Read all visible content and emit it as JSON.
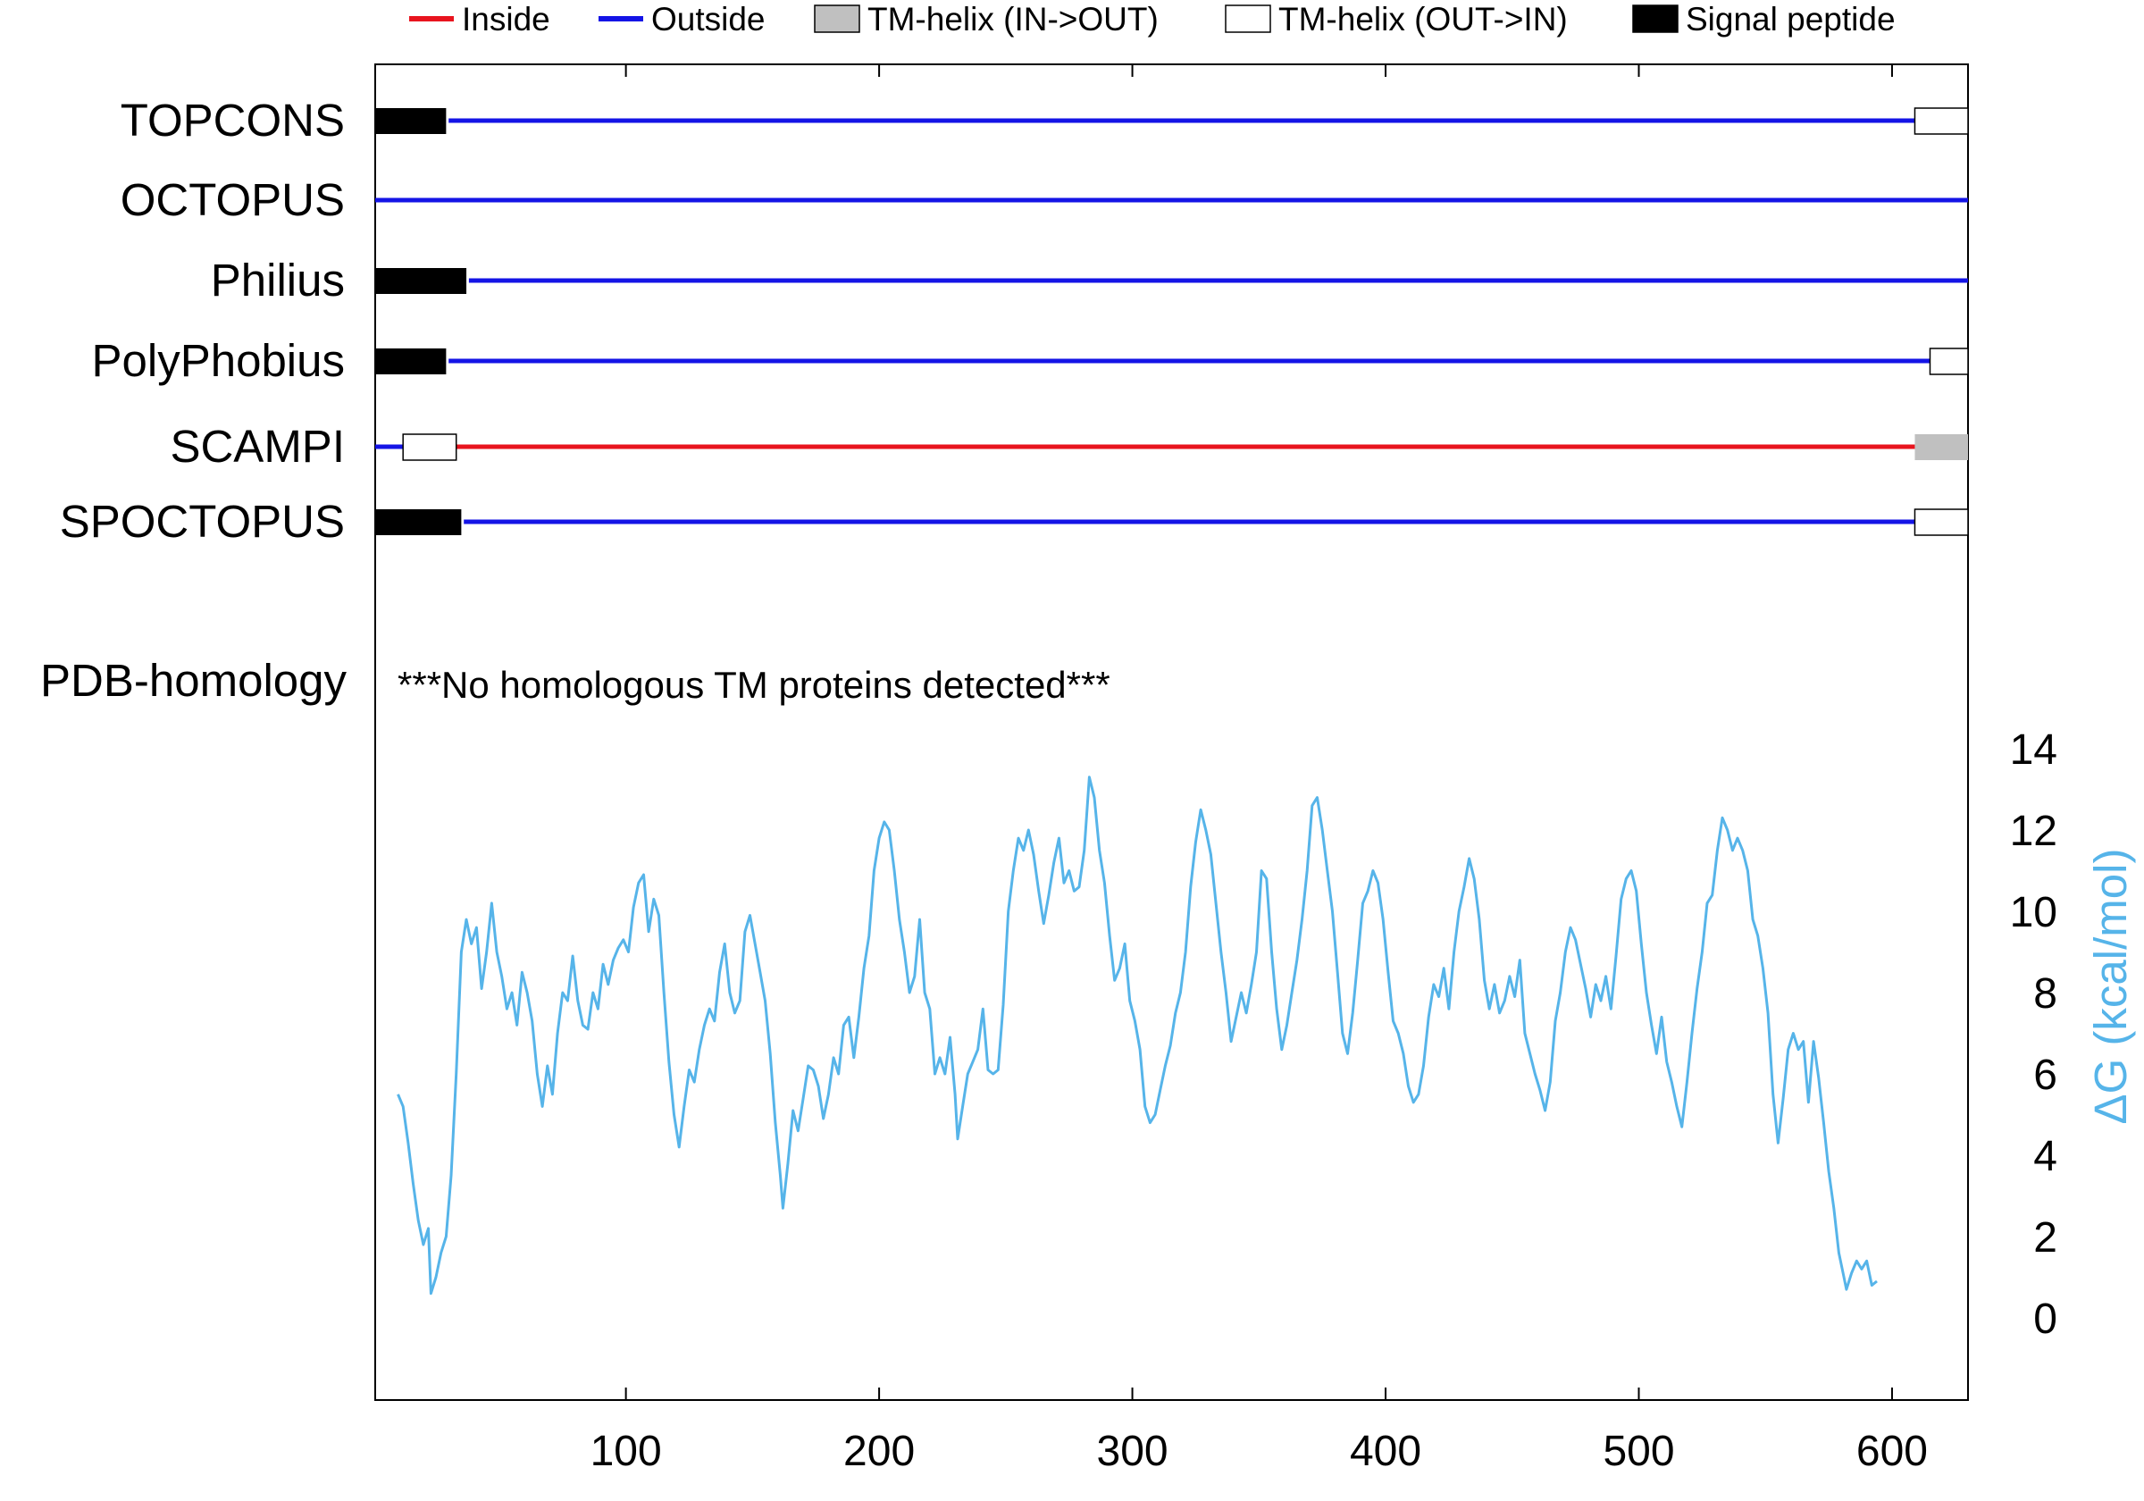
{
  "chart_data": {
    "type": "line",
    "legend": {
      "placement": "top",
      "entries": [
        {
          "label": "Inside",
          "kind": "line",
          "color": "#e8141e"
        },
        {
          "label": "Outside",
          "kind": "line",
          "color": "#1414e6"
        },
        {
          "label": "TM-helix (IN->OUT)",
          "kind": "box",
          "color": "#c0c0c0"
        },
        {
          "label": "TM-helix (OUT->IN)",
          "kind": "box",
          "color": "#ffffff"
        },
        {
          "label": "Signal peptide",
          "kind": "box",
          "color": "#000000"
        }
      ]
    },
    "x_range": [
      1,
      630
    ],
    "x_ticks": [
      100,
      200,
      300,
      400,
      500,
      600
    ],
    "colors": {
      "inside": "#e8141e",
      "outside": "#1414e6",
      "tm_in_out": "#c0c0c0",
      "tm_out_in": "#ffffff",
      "signal": "#000000",
      "dg_line": "#56b4e9"
    },
    "tracks": [
      {
        "name": "TOPCONS",
        "segments": [
          {
            "type": "signal",
            "start": 1,
            "end": 29
          },
          {
            "type": "outside",
            "start": 30,
            "end": 609
          },
          {
            "type": "tm_out_in",
            "start": 609,
            "end": 630
          }
        ]
      },
      {
        "name": "OCTOPUS",
        "segments": [
          {
            "type": "outside",
            "start": 1,
            "end": 630
          }
        ]
      },
      {
        "name": "Philius",
        "segments": [
          {
            "type": "signal",
            "start": 1,
            "end": 37
          },
          {
            "type": "outside",
            "start": 38,
            "end": 630
          }
        ]
      },
      {
        "name": "PolyPhobius",
        "segments": [
          {
            "type": "signal",
            "start": 1,
            "end": 29
          },
          {
            "type": "outside",
            "start": 30,
            "end": 615
          },
          {
            "type": "tm_out_in",
            "start": 615,
            "end": 630
          }
        ]
      },
      {
        "name": "SCAMPI",
        "segments": [
          {
            "type": "outside",
            "start": 1,
            "end": 12
          },
          {
            "type": "tm_out_in",
            "start": 12,
            "end": 33
          },
          {
            "type": "inside",
            "start": 33,
            "end": 609
          },
          {
            "type": "tm_in_out",
            "start": 609,
            "end": 630
          }
        ]
      },
      {
        "name": "SPOCTOPUS",
        "segments": [
          {
            "type": "signal",
            "start": 1,
            "end": 35
          },
          {
            "type": "outside",
            "start": 36,
            "end": 609
          },
          {
            "type": "tm_out_in",
            "start": 609,
            "end": 630
          }
        ]
      }
    ],
    "pdb_homology": {
      "label": "PDB-homology",
      "message": "***No homologous TM proteins detected***"
    },
    "delta_g": {
      "ylabel": "ΔG (kcal/mol)",
      "ylim": [
        0,
        14
      ],
      "y_ticks": [
        0,
        2,
        4,
        6,
        8,
        10,
        12,
        14
      ],
      "points": [
        [
          10,
          5.5
        ],
        [
          12,
          5.2
        ],
        [
          14,
          4.3
        ],
        [
          16,
          3.3
        ],
        [
          18,
          2.4
        ],
        [
          20,
          1.8
        ],
        [
          22,
          2.2
        ],
        [
          23,
          0.6
        ],
        [
          25,
          1.0
        ],
        [
          27,
          1.6
        ],
        [
          29,
          2.0
        ],
        [
          31,
          3.5
        ],
        [
          33,
          6.0
        ],
        [
          35,
          9.0
        ],
        [
          37,
          9.8
        ],
        [
          39,
          9.2
        ],
        [
          41,
          9.6
        ],
        [
          43,
          8.1
        ],
        [
          45,
          9.0
        ],
        [
          47,
          10.2
        ],
        [
          49,
          9.0
        ],
        [
          51,
          8.4
        ],
        [
          53,
          7.6
        ],
        [
          55,
          8.0
        ],
        [
          57,
          7.2
        ],
        [
          59,
          8.5
        ],
        [
          61,
          8.0
        ],
        [
          63,
          7.3
        ],
        [
          65,
          6.0
        ],
        [
          67,
          5.2
        ],
        [
          69,
          6.2
        ],
        [
          71,
          5.5
        ],
        [
          73,
          7.0
        ],
        [
          75,
          8.0
        ],
        [
          77,
          7.8
        ],
        [
          79,
          8.9
        ],
        [
          81,
          7.8
        ],
        [
          83,
          7.2
        ],
        [
          85,
          7.1
        ],
        [
          87,
          8.0
        ],
        [
          89,
          7.6
        ],
        [
          91,
          8.7
        ],
        [
          93,
          8.2
        ],
        [
          95,
          8.8
        ],
        [
          97,
          9.1
        ],
        [
          99,
          9.3
        ],
        [
          101,
          9.0
        ],
        [
          103,
          10.1
        ],
        [
          105,
          10.7
        ],
        [
          107,
          10.9
        ],
        [
          109,
          9.5
        ],
        [
          111,
          10.3
        ],
        [
          113,
          9.9
        ],
        [
          115,
          8.0
        ],
        [
          117,
          6.3
        ],
        [
          119,
          5.0
        ],
        [
          121,
          4.2
        ],
        [
          123,
          5.2
        ],
        [
          125,
          6.1
        ],
        [
          127,
          5.8
        ],
        [
          129,
          6.6
        ],
        [
          131,
          7.2
        ],
        [
          133,
          7.6
        ],
        [
          135,
          7.3
        ],
        [
          137,
          8.5
        ],
        [
          139,
          9.2
        ],
        [
          141,
          8.0
        ],
        [
          143,
          7.5
        ],
        [
          145,
          7.8
        ],
        [
          147,
          9.5
        ],
        [
          149,
          9.9
        ],
        [
          151,
          9.2
        ],
        [
          153,
          8.5
        ],
        [
          155,
          7.8
        ],
        [
          157,
          6.5
        ],
        [
          159,
          4.8
        ],
        [
          161,
          3.5
        ],
        [
          162,
          2.7
        ],
        [
          164,
          3.8
        ],
        [
          166,
          5.1
        ],
        [
          168,
          4.6
        ],
        [
          170,
          5.4
        ],
        [
          172,
          6.2
        ],
        [
          174,
          6.1
        ],
        [
          176,
          5.7
        ],
        [
          178,
          4.9
        ],
        [
          180,
          5.5
        ],
        [
          182,
          6.4
        ],
        [
          184,
          6.0
        ],
        [
          186,
          7.2
        ],
        [
          188,
          7.4
        ],
        [
          190,
          6.4
        ],
        [
          192,
          7.4
        ],
        [
          194,
          8.6
        ],
        [
          196,
          9.4
        ],
        [
          198,
          11.0
        ],
        [
          200,
          11.8
        ],
        [
          202,
          12.2
        ],
        [
          204,
          12.0
        ],
        [
          206,
          11.0
        ],
        [
          208,
          9.8
        ],
        [
          210,
          9.0
        ],
        [
          212,
          8.0
        ],
        [
          214,
          8.4
        ],
        [
          216,
          9.8
        ],
        [
          218,
          8.0
        ],
        [
          220,
          7.6
        ],
        [
          222,
          6.0
        ],
        [
          224,
          6.4
        ],
        [
          226,
          6.0
        ],
        [
          228,
          6.9
        ],
        [
          230,
          5.5
        ],
        [
          231,
          4.4
        ],
        [
          233,
          5.2
        ],
        [
          235,
          6.0
        ],
        [
          237,
          6.3
        ],
        [
          239,
          6.6
        ],
        [
          241,
          7.6
        ],
        [
          243,
          6.1
        ],
        [
          245,
          6.0
        ],
        [
          247,
          6.1
        ],
        [
          249,
          7.7
        ],
        [
          251,
          10.0
        ],
        [
          253,
          11.0
        ],
        [
          255,
          11.8
        ],
        [
          257,
          11.5
        ],
        [
          259,
          12.0
        ],
        [
          261,
          11.4
        ],
        [
          263,
          10.5
        ],
        [
          265,
          9.7
        ],
        [
          267,
          10.4
        ],
        [
          269,
          11.2
        ],
        [
          271,
          11.8
        ],
        [
          273,
          10.7
        ],
        [
          275,
          11.0
        ],
        [
          277,
          10.5
        ],
        [
          279,
          10.6
        ],
        [
          281,
          11.5
        ],
        [
          283,
          13.3
        ],
        [
          285,
          12.8
        ],
        [
          287,
          11.5
        ],
        [
          289,
          10.7
        ],
        [
          291,
          9.4
        ],
        [
          293,
          8.3
        ],
        [
          295,
          8.6
        ],
        [
          297,
          9.2
        ],
        [
          299,
          7.8
        ],
        [
          301,
          7.3
        ],
        [
          303,
          6.6
        ],
        [
          305,
          5.2
        ],
        [
          307,
          4.8
        ],
        [
          309,
          5.0
        ],
        [
          311,
          5.6
        ],
        [
          313,
          6.2
        ],
        [
          315,
          6.7
        ],
        [
          317,
          7.5
        ],
        [
          319,
          8.0
        ],
        [
          321,
          9.0
        ],
        [
          323,
          10.6
        ],
        [
          325,
          11.7
        ],
        [
          327,
          12.5
        ],
        [
          329,
          12.0
        ],
        [
          331,
          11.4
        ],
        [
          333,
          10.2
        ],
        [
          335,
          9.0
        ],
        [
          337,
          8.0
        ],
        [
          339,
          6.8
        ],
        [
          341,
          7.4
        ],
        [
          343,
          8.0
        ],
        [
          345,
          7.5
        ],
        [
          347,
          8.2
        ],
        [
          349,
          9.0
        ],
        [
          351,
          11.0
        ],
        [
          353,
          10.8
        ],
        [
          355,
          9.0
        ],
        [
          357,
          7.6
        ],
        [
          359,
          6.6
        ],
        [
          361,
          7.2
        ],
        [
          363,
          8.0
        ],
        [
          365,
          8.8
        ],
        [
          367,
          9.8
        ],
        [
          369,
          11.0
        ],
        [
          371,
          12.6
        ],
        [
          373,
          12.8
        ],
        [
          375,
          12.0
        ],
        [
          377,
          11.0
        ],
        [
          379,
          10.0
        ],
        [
          381,
          8.5
        ],
        [
          383,
          7.0
        ],
        [
          385,
          6.5
        ],
        [
          387,
          7.5
        ],
        [
          389,
          8.8
        ],
        [
          391,
          10.2
        ],
        [
          393,
          10.5
        ],
        [
          395,
          11.0
        ],
        [
          397,
          10.7
        ],
        [
          399,
          9.8
        ],
        [
          401,
          8.5
        ],
        [
          403,
          7.3
        ],
        [
          405,
          7.0
        ],
        [
          407,
          6.5
        ],
        [
          409,
          5.7
        ],
        [
          411,
          5.3
        ],
        [
          413,
          5.5
        ],
        [
          415,
          6.2
        ],
        [
          417,
          7.4
        ],
        [
          419,
          8.2
        ],
        [
          421,
          7.9
        ],
        [
          423,
          8.6
        ],
        [
          425,
          7.6
        ],
        [
          427,
          9.0
        ],
        [
          429,
          10.0
        ],
        [
          431,
          10.6
        ],
        [
          433,
          11.3
        ],
        [
          435,
          10.8
        ],
        [
          437,
          9.8
        ],
        [
          439,
          8.3
        ],
        [
          441,
          7.6
        ],
        [
          443,
          8.2
        ],
        [
          445,
          7.5
        ],
        [
          447,
          7.8
        ],
        [
          449,
          8.4
        ],
        [
          451,
          7.9
        ],
        [
          453,
          8.8
        ],
        [
          455,
          7.0
        ],
        [
          457,
          6.5
        ],
        [
          459,
          6.0
        ],
        [
          461,
          5.6
        ],
        [
          463,
          5.1
        ],
        [
          465,
          5.8
        ],
        [
          467,
          7.3
        ],
        [
          469,
          8.0
        ],
        [
          471,
          9.0
        ],
        [
          473,
          9.6
        ],
        [
          475,
          9.3
        ],
        [
          477,
          8.7
        ],
        [
          479,
          8.1
        ],
        [
          481,
          7.4
        ],
        [
          483,
          8.2
        ],
        [
          485,
          7.8
        ],
        [
          487,
          8.4
        ],
        [
          489,
          7.6
        ],
        [
          491,
          8.9
        ],
        [
          493,
          10.3
        ],
        [
          495,
          10.8
        ],
        [
          497,
          11.0
        ],
        [
          499,
          10.5
        ],
        [
          501,
          9.2
        ],
        [
          503,
          8.0
        ],
        [
          505,
          7.2
        ],
        [
          507,
          6.5
        ],
        [
          509,
          7.4
        ],
        [
          511,
          6.3
        ],
        [
          513,
          5.8
        ],
        [
          515,
          5.2
        ],
        [
          517,
          4.7
        ],
        [
          519,
          5.8
        ],
        [
          521,
          7.0
        ],
        [
          523,
          8.1
        ],
        [
          525,
          9.0
        ],
        [
          527,
          10.2
        ],
        [
          529,
          10.4
        ],
        [
          531,
          11.5
        ],
        [
          533,
          12.3
        ],
        [
          535,
          12.0
        ],
        [
          537,
          11.5
        ],
        [
          539,
          11.8
        ],
        [
          541,
          11.5
        ],
        [
          543,
          11.0
        ],
        [
          545,
          9.8
        ],
        [
          547,
          9.4
        ],
        [
          549,
          8.6
        ],
        [
          551,
          7.5
        ],
        [
          553,
          5.5
        ],
        [
          555,
          4.3
        ],
        [
          557,
          5.4
        ],
        [
          559,
          6.6
        ],
        [
          561,
          7.0
        ],
        [
          563,
          6.6
        ],
        [
          565,
          6.8
        ],
        [
          567,
          5.3
        ],
        [
          569,
          6.8
        ],
        [
          571,
          5.9
        ],
        [
          573,
          4.8
        ],
        [
          575,
          3.6
        ],
        [
          577,
          2.7
        ],
        [
          579,
          1.6
        ],
        [
          581,
          1.0
        ],
        [
          582,
          0.7
        ],
        [
          584,
          1.1
        ],
        [
          586,
          1.4
        ],
        [
          588,
          1.2
        ],
        [
          590,
          1.4
        ],
        [
          592,
          0.8
        ],
        [
          594,
          0.9
        ]
      ]
    }
  }
}
